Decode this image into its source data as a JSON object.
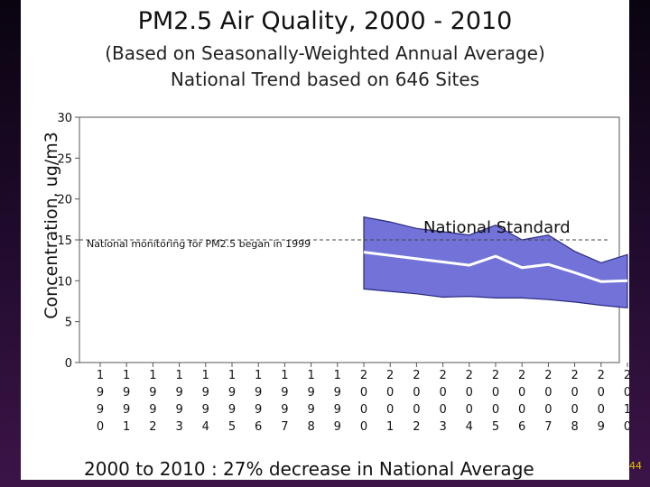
{
  "slide": {
    "title": "PM2.5 Air Quality, 2000 - 2010",
    "subtitle_line1": "(Based on Seasonally-Weighted Annual Average)",
    "subtitle_line2": "National Trend based on 646 Sites",
    "footer": "2000 to 2010 :  27% decrease in National Average",
    "slide_number": "44"
  },
  "colors": {
    "band_fill": "#7272d8",
    "band_stroke": "#2a2a80",
    "average_line": "#ffffff",
    "standard_line": "#444444"
  },
  "chart_data": {
    "type": "area",
    "title": "PM2.5 Air Quality, 2000 - 2010",
    "ylabel": "Concentration, ug/m3",
    "xlabel": "",
    "ylim": [
      0,
      30
    ],
    "yticks": [
      0,
      5,
      10,
      15,
      20,
      25,
      30
    ],
    "xlim": [
      1990,
      2010
    ],
    "x_tick_labels": [
      "1990",
      "1991",
      "1992",
      "1993",
      "1994",
      "1995",
      "1996",
      "1997",
      "1998",
      "1999",
      "2000",
      "2001",
      "2002",
      "2003",
      "2004",
      "2005",
      "2006",
      "2007",
      "2008",
      "2009",
      "2010"
    ],
    "grid": false,
    "x": [
      2000,
      2001,
      2002,
      2003,
      2004,
      2005,
      2006,
      2007,
      2008,
      2009,
      2010
    ],
    "series": [
      {
        "role": "upper_band",
        "values": [
          17.8,
          17.2,
          16.4,
          16.0,
          15.6,
          16.8,
          15.0,
          15.6,
          13.6,
          12.2,
          13.2
        ]
      },
      {
        "role": "national_average",
        "values": [
          13.5,
          13.1,
          12.7,
          12.3,
          11.9,
          13.0,
          11.6,
          12.0,
          11.0,
          9.9,
          10.0
        ]
      },
      {
        "role": "lower_band",
        "values": [
          9.0,
          8.7,
          8.4,
          8.0,
          8.1,
          7.9,
          7.9,
          7.7,
          7.4,
          7.0,
          6.7
        ]
      }
    ],
    "national_standard": 15,
    "annotations": [
      {
        "text": "National Standard"
      },
      {
        "text": "National monitoring for PM2.5 began in 1999"
      }
    ]
  }
}
